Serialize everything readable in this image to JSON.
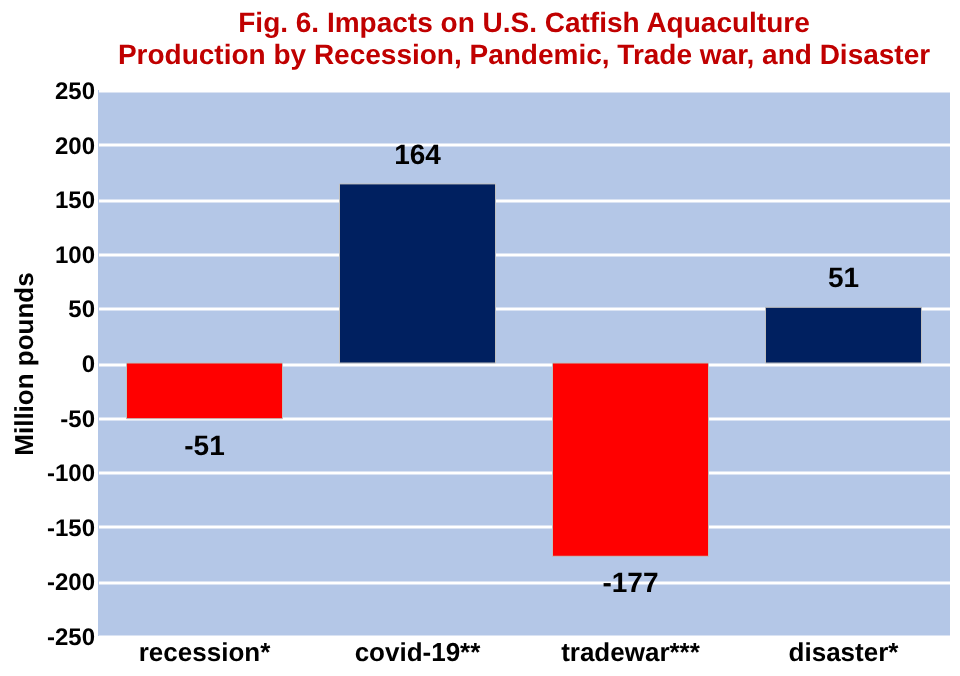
{
  "chart_data": {
    "type": "bar",
    "title": "Fig. 6. Impacts on U.S. Catfish Aquaculture Production by Recession, Pandemic, Trade war, and Disaster",
    "categories": [
      "recession*",
      "covid-19**",
      "tradewar***",
      "disaster*"
    ],
    "values": [
      -51,
      164,
      -177,
      51
    ],
    "colors": [
      "#ff0000",
      "#002060",
      "#ff0000",
      "#002060"
    ],
    "ylabel": "Million pounds",
    "ylim": [
      -250,
      250
    ],
    "yticks": [
      -250,
      -200,
      -150,
      -100,
      -50,
      0,
      50,
      100,
      150,
      200,
      250
    ],
    "grid": "y",
    "data_labels": true
  }
}
